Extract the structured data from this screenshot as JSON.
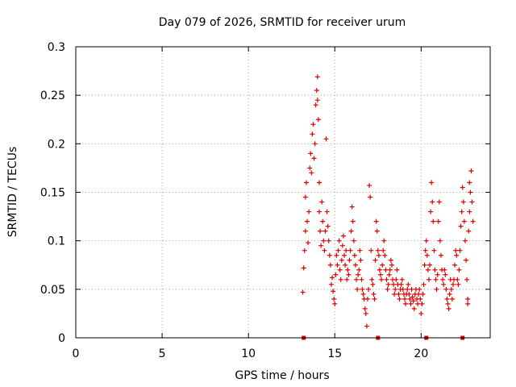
{
  "chart_data": {
    "type": "scatter",
    "title": "Day 079 of 2026, SRMTID for receiver urum",
    "xlabel": "GPS time / hours",
    "ylabel": "SRMTID / TECUs",
    "xlim": [
      0,
      24
    ],
    "ylim": [
      0,
      0.3
    ],
    "xticks": [
      0,
      5,
      10,
      15,
      20
    ],
    "xtick_labels": [
      "0",
      "5",
      "10",
      "15",
      "20"
    ],
    "yticks": [
      0,
      0.05,
      0.1,
      0.15,
      0.2,
      0.25,
      0.3
    ],
    "ytick_labels": [
      "0",
      "0.05",
      "0.1",
      "0.15",
      "0.2",
      "0.25",
      "0.3"
    ],
    "grid": true,
    "marker": "+",
    "color": "#dd0000",
    "gap_markers_x": [
      13.2,
      17.5,
      20.3,
      22.4
    ],
    "series": [
      {
        "name": "SRMTID",
        "points": [
          [
            13.15,
            0.047
          ],
          [
            13.2,
            0.072
          ],
          [
            13.25,
            0.09
          ],
          [
            13.3,
            0.11
          ],
          [
            13.3,
            0.145
          ],
          [
            13.35,
            0.16
          ],
          [
            13.4,
            0.12
          ],
          [
            13.45,
            0.098
          ],
          [
            13.5,
            0.13
          ],
          [
            13.55,
            0.175
          ],
          [
            13.6,
            0.19
          ],
          [
            13.65,
            0.17
          ],
          [
            13.7,
            0.21
          ],
          [
            13.75,
            0.22
          ],
          [
            13.8,
            0.185
          ],
          [
            13.85,
            0.2
          ],
          [
            13.9,
            0.24
          ],
          [
            13.95,
            0.255
          ],
          [
            14.0,
            0.269
          ],
          [
            14.0,
            0.245
          ],
          [
            14.05,
            0.225
          ],
          [
            14.1,
            0.16
          ],
          [
            14.1,
            0.13
          ],
          [
            14.15,
            0.11
          ],
          [
            14.2,
            0.095
          ],
          [
            14.25,
            0.14
          ],
          [
            14.3,
            0.12
          ],
          [
            14.35,
            0.1
          ],
          [
            14.4,
            0.09
          ],
          [
            14.45,
            0.11
          ],
          [
            14.5,
            0.205
          ],
          [
            14.55,
            0.13
          ],
          [
            14.6,
            0.115
          ],
          [
            14.65,
            0.1
          ],
          [
            14.7,
            0.085
          ],
          [
            14.75,
            0.075
          ],
          [
            14.8,
            0.055
          ],
          [
            14.85,
            0.062
          ],
          [
            14.9,
            0.048
          ],
          [
            14.95,
            0.04
          ],
          [
            15.0,
            0.035
          ],
          [
            15.05,
            0.065
          ],
          [
            15.1,
            0.085
          ],
          [
            15.15,
            0.075
          ],
          [
            15.2,
            0.09
          ],
          [
            15.25,
            0.1
          ],
          [
            15.3,
            0.07
          ],
          [
            15.35,
            0.06
          ],
          [
            15.4,
            0.08
          ],
          [
            15.45,
            0.095
          ],
          [
            15.5,
            0.105
          ],
          [
            15.55,
            0.085
          ],
          [
            15.6,
            0.075
          ],
          [
            15.65,
            0.09
          ],
          [
            15.7,
            0.06
          ],
          [
            15.75,
            0.07
          ],
          [
            15.8,
            0.065
          ],
          [
            15.85,
            0.08
          ],
          [
            15.9,
            0.09
          ],
          [
            15.95,
            0.11
          ],
          [
            16.0,
            0.135
          ],
          [
            16.05,
            0.12
          ],
          [
            16.1,
            0.1
          ],
          [
            16.15,
            0.085
          ],
          [
            16.2,
            0.075
          ],
          [
            16.25,
            0.06
          ],
          [
            16.3,
            0.05
          ],
          [
            16.35,
            0.065
          ],
          [
            16.4,
            0.07
          ],
          [
            16.45,
            0.09
          ],
          [
            16.5,
            0.08
          ],
          [
            16.55,
            0.06
          ],
          [
            16.6,
            0.05
          ],
          [
            16.65,
            0.045
          ],
          [
            16.7,
            0.04
          ],
          [
            16.75,
            0.03
          ],
          [
            16.8,
            0.025
          ],
          [
            16.85,
            0.012
          ],
          [
            16.9,
            0.04
          ],
          [
            16.95,
            0.05
          ],
          [
            17.0,
            0.157
          ],
          [
            17.05,
            0.145
          ],
          [
            17.1,
            0.09
          ],
          [
            17.15,
            0.06
          ],
          [
            17.2,
            0.055
          ],
          [
            17.25,
            0.045
          ],
          [
            17.3,
            0.04
          ],
          [
            17.35,
            0.08
          ],
          [
            17.4,
            0.12
          ],
          [
            17.45,
            0.11
          ],
          [
            17.5,
            0.09
          ],
          [
            17.55,
            0.085
          ],
          [
            17.6,
            0.07
          ],
          [
            17.65,
            0.065
          ],
          [
            17.7,
            0.06
          ],
          [
            17.75,
            0.075
          ],
          [
            17.8,
            0.09
          ],
          [
            17.85,
            0.1
          ],
          [
            17.9,
            0.085
          ],
          [
            17.95,
            0.07
          ],
          [
            18.0,
            0.06
          ],
          [
            18.05,
            0.05
          ],
          [
            18.1,
            0.055
          ],
          [
            18.15,
            0.065
          ],
          [
            18.2,
            0.07
          ],
          [
            18.25,
            0.08
          ],
          [
            18.3,
            0.075
          ],
          [
            18.35,
            0.06
          ],
          [
            18.4,
            0.055
          ],
          [
            18.45,
            0.045
          ],
          [
            18.5,
            0.05
          ],
          [
            18.55,
            0.06
          ],
          [
            18.6,
            0.07
          ],
          [
            18.65,
            0.055
          ],
          [
            18.7,
            0.045
          ],
          [
            18.75,
            0.04
          ],
          [
            18.8,
            0.05
          ],
          [
            18.85,
            0.055
          ],
          [
            18.9,
            0.06
          ],
          [
            18.95,
            0.05
          ],
          [
            19.0,
            0.045
          ],
          [
            19.05,
            0.04
          ],
          [
            19.1,
            0.035
          ],
          [
            19.15,
            0.045
          ],
          [
            19.2,
            0.05
          ],
          [
            19.25,
            0.055
          ],
          [
            19.3,
            0.045
          ],
          [
            19.35,
            0.04
          ],
          [
            19.4,
            0.035
          ],
          [
            19.45,
            0.05
          ],
          [
            19.5,
            0.042
          ],
          [
            19.55,
            0.038
          ],
          [
            19.6,
            0.03
          ],
          [
            19.65,
            0.045
          ],
          [
            19.7,
            0.05
          ],
          [
            19.75,
            0.04
          ],
          [
            19.8,
            0.035
          ],
          [
            19.85,
            0.045
          ],
          [
            19.9,
            0.05
          ],
          [
            19.95,
            0.04
          ],
          [
            20.0,
            0.025
          ],
          [
            20.05,
            0.035
          ],
          [
            20.1,
            0.045
          ],
          [
            20.15,
            0.055
          ],
          [
            20.2,
            0.075
          ],
          [
            20.25,
            0.09
          ],
          [
            20.3,
            0.1
          ],
          [
            20.35,
            0.085
          ],
          [
            20.4,
            0.07
          ],
          [
            20.45,
            0.06
          ],
          [
            20.5,
            0.075
          ],
          [
            20.55,
            0.13
          ],
          [
            20.6,
            0.16
          ],
          [
            20.65,
            0.14
          ],
          [
            20.7,
            0.12
          ],
          [
            20.75,
            0.09
          ],
          [
            20.8,
            0.07
          ],
          [
            20.85,
            0.06
          ],
          [
            20.9,
            0.05
          ],
          [
            20.95,
            0.065
          ],
          [
            21.0,
            0.12
          ],
          [
            21.05,
            0.14
          ],
          [
            21.1,
            0.1
          ],
          [
            21.15,
            0.085
          ],
          [
            21.2,
            0.07
          ],
          [
            21.25,
            0.06
          ],
          [
            21.3,
            0.055
          ],
          [
            21.35,
            0.07
          ],
          [
            21.4,
            0.065
          ],
          [
            21.45,
            0.05
          ],
          [
            21.5,
            0.04
          ],
          [
            21.55,
            0.035
          ],
          [
            21.6,
            0.03
          ],
          [
            21.65,
            0.045
          ],
          [
            21.7,
            0.06
          ],
          [
            21.75,
            0.05
          ],
          [
            21.8,
            0.04
          ],
          [
            21.85,
            0.055
          ],
          [
            21.9,
            0.06
          ],
          [
            21.95,
            0.075
          ],
          [
            22.0,
            0.09
          ],
          [
            22.05,
            0.085
          ],
          [
            22.1,
            0.06
          ],
          [
            22.15,
            0.055
          ],
          [
            22.2,
            0.07
          ],
          [
            22.25,
            0.09
          ],
          [
            22.3,
            0.115
          ],
          [
            22.35,
            0.13
          ],
          [
            22.4,
            0.155
          ],
          [
            22.45,
            0.14
          ],
          [
            22.5,
            0.12
          ],
          [
            22.55,
            0.1
          ],
          [
            22.6,
            0.08
          ],
          [
            22.65,
            0.06
          ],
          [
            22.7,
            0.04
          ],
          [
            22.7,
            0.035
          ],
          [
            22.75,
            0.11
          ],
          [
            22.8,
            0.13
          ],
          [
            22.8,
            0.16
          ],
          [
            22.85,
            0.15
          ],
          [
            22.9,
            0.172
          ],
          [
            22.95,
            0.14
          ],
          [
            23.0,
            0.12
          ]
        ]
      }
    ]
  }
}
